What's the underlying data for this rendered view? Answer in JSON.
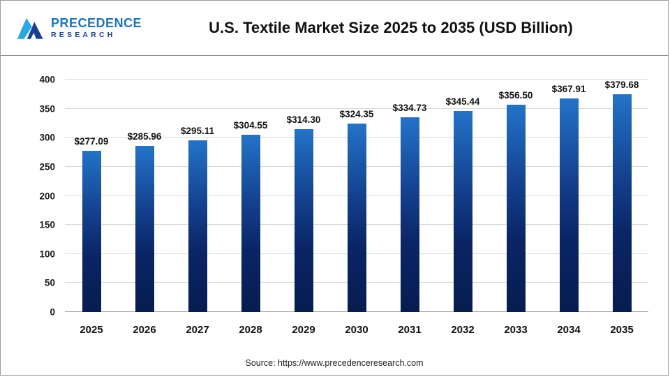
{
  "header": {
    "logo_line1": "PRECEDENCE",
    "logo_line2": "RESEARCH",
    "title": "U.S. Textile Market Size 2025 to 2035 (USD Billion)"
  },
  "chart_data": {
    "type": "bar",
    "title": "U.S. Textile Market Size 2025 to 2035 (USD Billion)",
    "categories": [
      "2025",
      "2026",
      "2027",
      "2028",
      "2029",
      "2030",
      "2031",
      "2032",
      "2033",
      "2034",
      "2035"
    ],
    "values": [
      277.09,
      285.96,
      295.11,
      304.55,
      314.3,
      324.35,
      334.73,
      345.44,
      356.5,
      367.91,
      379.68
    ],
    "labels": [
      "$277.09",
      "$285.96",
      "$295.11",
      "$304.55",
      "$314.30",
      "$324.35",
      "$334.73",
      "$345.44",
      "$356.50",
      "$367.91",
      "$379.68"
    ],
    "xlabel": "",
    "ylabel": "",
    "ylim": [
      0,
      400
    ],
    "ytick_step": 50,
    "grid": true,
    "legend": false,
    "bar_color_top": "#2373c8",
    "bar_color_bottom": "#071d50"
  },
  "footer": {
    "source": "Source: https://www.precedenceresearch.com"
  }
}
